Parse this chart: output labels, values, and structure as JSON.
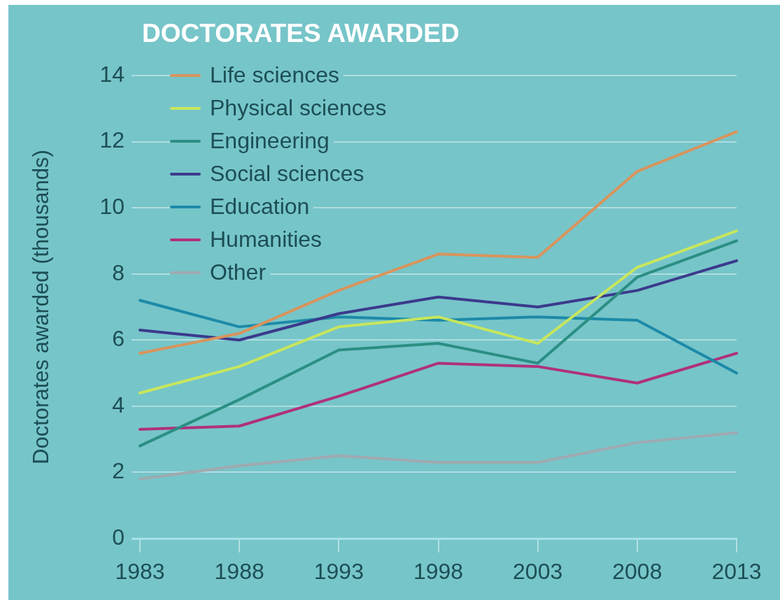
{
  "chart_data": {
    "type": "line",
    "title": "DOCTORATES AWARDED",
    "ylabel": "Doctorates awarded (thousands)",
    "x": [
      1983,
      1988,
      1993,
      1998,
      2003,
      2008,
      2013
    ],
    "xlim": [
      1983,
      2013
    ],
    "xticks": [
      1983,
      1988,
      1993,
      1998,
      2003,
      2008,
      2013
    ],
    "ylim": [
      0,
      14
    ],
    "yticks": [
      0,
      2,
      4,
      6,
      8,
      10,
      12,
      14
    ],
    "grid": "y",
    "legend": "top left",
    "marker": "none",
    "line_style": "solid",
    "series": [
      {
        "name": "Life sciences",
        "color": "#d8945c",
        "values": [
          5.6,
          6.2,
          7.5,
          8.6,
          8.5,
          11.1,
          12.3
        ]
      },
      {
        "name": "Physical sciences",
        "color": "#c8e65c",
        "values": [
          4.4,
          5.2,
          6.4,
          6.7,
          5.9,
          8.2,
          9.3
        ]
      },
      {
        "name": "Engineering",
        "color": "#2b8f83",
        "values": [
          2.8,
          4.2,
          5.7,
          5.9,
          5.3,
          7.9,
          9.0
        ]
      },
      {
        "name": "Social sciences",
        "color": "#3b3a8c",
        "values": [
          6.3,
          6.0,
          6.8,
          7.3,
          7.0,
          7.5,
          8.4
        ]
      },
      {
        "name": "Education",
        "color": "#1d8aa8",
        "values": [
          7.2,
          6.4,
          6.7,
          6.6,
          6.7,
          6.6,
          5.0
        ]
      },
      {
        "name": "Humanities",
        "color": "#b0307c",
        "values": [
          3.3,
          3.4,
          4.3,
          5.3,
          5.2,
          4.7,
          5.6
        ]
      },
      {
        "name": "Other",
        "color": "#9eaab0",
        "values": [
          1.8,
          2.2,
          2.5,
          2.3,
          2.3,
          2.9,
          3.2
        ]
      }
    ]
  }
}
